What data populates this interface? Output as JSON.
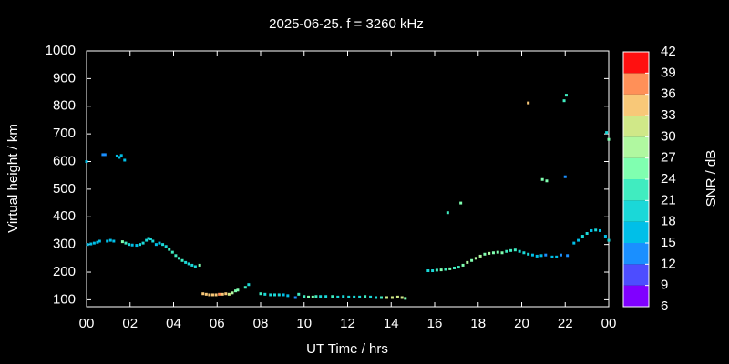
{
  "chart_data": {
    "type": "scatter",
    "title": "2025-06-25. f = 3260 kHz",
    "x_label": "UT Time / hrs",
    "y_label": "Virtual height / km",
    "xlim": [
      0,
      24
    ],
    "ylim": [
      75,
      1000
    ],
    "xticks": [
      {
        "value": 0,
        "label": "00"
      },
      {
        "value": 2,
        "label": "02"
      },
      {
        "value": 4,
        "label": "04"
      },
      {
        "value": 6,
        "label": "06"
      },
      {
        "value": 8,
        "label": "08"
      },
      10,
      12,
      14,
      16,
      18,
      20,
      22,
      {
        "value": 24,
        "label": "00"
      }
    ],
    "yticks": [
      100,
      200,
      300,
      400,
      500,
      600,
      700,
      800,
      900,
      1000
    ],
    "colorbar": {
      "label": "SNR / dB",
      "ticks": [
        6,
        9,
        12,
        15,
        18,
        21,
        24,
        27,
        30,
        33,
        36,
        39,
        42
      ],
      "colors": [
        "#8000ff",
        "#4d4dff",
        "#1a8fff",
        "#00bfe8",
        "#1ad8d8",
        "#40ecc0",
        "#80ffb0",
        "#b0f8a0",
        "#d0e888",
        "#f8c878",
        "#ff9058",
        "#ff5030"
      ],
      "top_color": "#ff1010"
    },
    "x": [
      0.0,
      0.05,
      0.2,
      0.35,
      0.5,
      0.6,
      0.75,
      0.85,
      0.95,
      1.1,
      1.25,
      1.4,
      1.5,
      1.6,
      1.75,
      1.65,
      1.8,
      1.95,
      2.1,
      2.3,
      2.45,
      2.6,
      2.75,
      2.85,
      2.95,
      3.05,
      3.2,
      3.35,
      3.5,
      3.65,
      3.8,
      3.95,
      4.1,
      4.25,
      4.4,
      4.55,
      4.7,
      4.85,
      5.0,
      5.2,
      5.35,
      5.5,
      5.65,
      5.8,
      5.95,
      6.1,
      6.25,
      6.4,
      6.55,
      6.7,
      6.85,
      6.95,
      7.3,
      7.45,
      8.0,
      8.2,
      8.45,
      8.65,
      8.85,
      9.05,
      9.25,
      9.6,
      9.75,
      10.0,
      10.2,
      10.4,
      10.55,
      10.75,
      11.0,
      11.3,
      11.55,
      11.8,
      12.05,
      12.3,
      12.55,
      12.8,
      13.05,
      13.3,
      13.55,
      13.8,
      14.05,
      14.3,
      14.5,
      14.65,
      15.7,
      15.9,
      16.1,
      16.3,
      16.5,
      16.7,
      16.9,
      17.1,
      17.3,
      17.5,
      17.7,
      17.9,
      18.1,
      18.3,
      18.5,
      18.7,
      18.9,
      19.1,
      19.3,
      19.5,
      19.7,
      19.9,
      20.1,
      20.3,
      20.5,
      20.7,
      20.9,
      21.1,
      21.4,
      21.6,
      21.8,
      22.1,
      22.4,
      22.6,
      22.8,
      23.0,
      23.2,
      23.4,
      23.6,
      23.85,
      24.0,
      16.6,
      17.2,
      20.3,
      20.95,
      21.15,
      21.95,
      22.05,
      22.0,
      23.9,
      24.0
    ],
    "values": [
      600,
      300,
      302,
      305,
      308,
      312,
      625,
      625,
      312,
      315,
      312,
      620,
      615,
      622,
      605,
      310,
      305,
      300,
      298,
      297,
      300,
      305,
      315,
      322,
      320,
      312,
      300,
      305,
      300,
      293,
      282,
      272,
      260,
      250,
      242,
      235,
      230,
      225,
      220,
      225,
      122,
      120,
      118,
      118,
      118,
      120,
      120,
      122,
      120,
      125,
      132,
      135,
      145,
      155,
      122,
      120,
      118,
      118,
      118,
      118,
      115,
      108,
      120,
      112,
      110,
      110,
      112,
      112,
      112,
      112,
      110,
      112,
      110,
      110,
      110,
      112,
      110,
      108,
      108,
      108,
      108,
      110,
      108,
      105,
      205,
      205,
      207,
      208,
      210,
      212,
      215,
      218,
      225,
      235,
      242,
      250,
      258,
      265,
      268,
      270,
      272,
      270,
      275,
      278,
      280,
      275,
      270,
      265,
      262,
      258,
      260,
      262,
      255,
      255,
      262,
      260,
      305,
      315,
      330,
      340,
      350,
      352,
      350,
      330,
      315,
      415,
      450,
      812,
      535,
      530,
      820,
      840,
      545,
      705,
      680
    ],
    "snr": [
      15,
      15,
      15,
      15,
      15,
      16,
      14,
      14,
      16,
      16,
      17,
      16,
      16,
      17,
      16,
      24,
      21,
      18,
      17,
      17,
      18,
      19,
      19,
      19,
      19,
      18,
      17,
      16,
      19,
      20,
      21,
      22,
      23,
      22,
      21,
      20,
      19,
      18,
      20,
      24,
      34,
      35,
      34,
      33,
      35,
      36,
      35,
      34,
      32,
      28,
      26,
      24,
      22,
      20,
      21,
      20,
      20,
      19,
      18,
      17,
      15,
      14,
      22,
      21,
      26,
      24,
      21,
      19,
      20,
      22,
      19,
      20,
      19,
      18,
      19,
      21,
      20,
      19,
      22,
      30,
      32,
      31,
      30,
      25,
      18,
      19,
      22,
      24,
      22,
      26,
      23,
      22,
      24,
      27,
      26,
      28,
      27,
      26,
      27,
      26,
      25,
      24,
      23,
      22,
      21,
      20,
      19,
      18,
      17,
      16,
      15,
      14,
      15,
      16,
      14,
      13,
      16,
      17,
      18,
      19,
      15,
      18,
      15,
      17,
      19,
      21,
      24,
      34,
      25,
      24,
      21,
      22,
      13,
      20,
      24
    ]
  }
}
